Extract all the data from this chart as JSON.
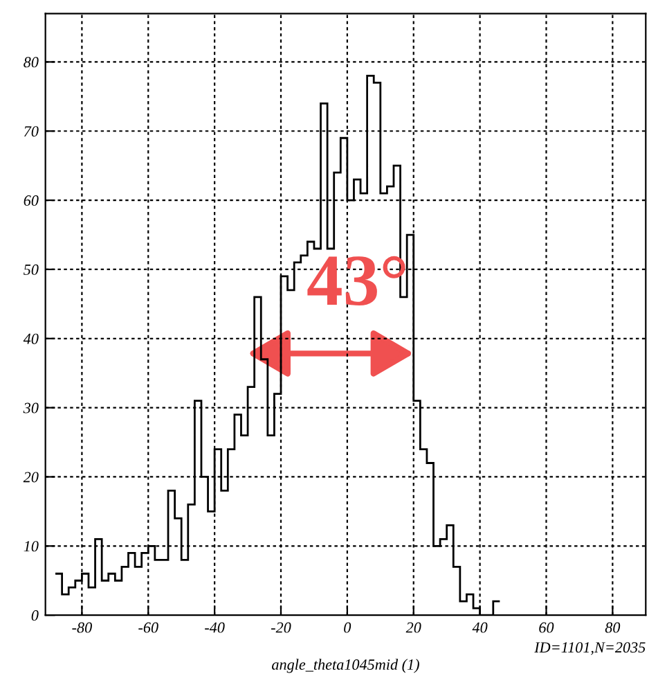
{
  "chart_data": {
    "type": "histogram",
    "bins": [
      -88,
      -86,
      -84,
      -82,
      -80,
      -78,
      -76,
      -74,
      -72,
      -70,
      -68,
      -66,
      -64,
      -62,
      -60,
      -58,
      -56,
      -54,
      -52,
      -50,
      -48,
      -46,
      -44,
      -42,
      -40,
      -38,
      -36,
      -34,
      -32,
      -30,
      -28,
      -26,
      -24,
      -22,
      -20,
      -18,
      -16,
      -14,
      -12,
      -10,
      -8,
      -6,
      -4,
      -2,
      0,
      2,
      4,
      6,
      8,
      10,
      12,
      14,
      16,
      18,
      20,
      22,
      24,
      26,
      28,
      30,
      32,
      34,
      36,
      38,
      40,
      42,
      44,
      46
    ],
    "values": [
      6,
      3,
      4,
      5,
      6,
      4,
      11,
      5,
      6,
      5,
      7,
      9,
      7,
      9,
      10,
      8,
      8,
      18,
      14,
      8,
      16,
      31,
      20,
      15,
      24,
      18,
      24,
      29,
      26,
      33,
      46,
      37,
      26,
      32,
      49,
      47,
      51,
      52,
      54,
      53,
      74,
      53,
      64,
      69,
      60,
      63,
      61,
      78,
      77,
      61,
      62,
      65,
      46,
      55,
      31,
      24,
      22,
      10,
      11,
      13,
      7,
      2,
      3,
      1,
      0,
      0,
      2
    ],
    "color": "#000000",
    "xlabel": "angle_theta1045mid (1)",
    "annotations": [
      "43°",
      "ID=1101,N=2035"
    ],
    "xlim": [
      -91,
      90
    ],
    "ylim": [
      0,
      87
    ],
    "xticks": [
      -80,
      -60,
      -40,
      -20,
      0,
      20,
      40,
      60,
      80
    ],
    "yticks": [
      0,
      10,
      20,
      30,
      40,
      50,
      60,
      70,
      80
    ],
    "grid": true
  }
}
